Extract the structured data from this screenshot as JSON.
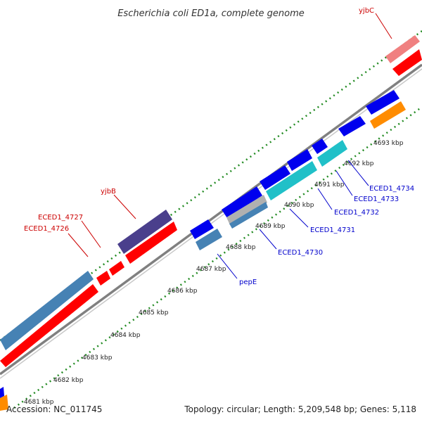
{
  "title": "Escherichia coli ED1a, complete genome",
  "footer": {
    "accession": "Accession: NC_011745",
    "summary": "Topology: circular; Length: 5,209,548 bp; Genes: 5,118"
  },
  "scale": {
    "ticks": [
      "4681 kbp",
      "4682 kbp",
      "4683 kbp",
      "4684 kbp",
      "4685 kbp",
      "4686 kbp",
      "4687 kbp",
      "4688 kbp",
      "4689 kbp",
      "4690 kbp",
      "4691 kbp",
      "4692 kbp",
      "4693 kbp"
    ]
  },
  "gene_labels": {
    "forward": [
      "yjbC",
      "yjbB",
      "ECED1_4727",
      "ECED1_4726"
    ],
    "reverse": [
      "pepE",
      "ECED1_4730",
      "ECED1_4731",
      "ECED1_4732",
      "ECED1_4733",
      "ECED1_4734"
    ]
  },
  "colors": {
    "forward_label": "#cc0000",
    "reverse_label": "#0000cc",
    "red": "#ff0000",
    "pink": "#f08080",
    "navy": "#4a3f8c",
    "steelblue": "#4682b4",
    "blue": "#0000ee",
    "cyan": "#20c0c8",
    "silver": "#b0b0b0",
    "orange": "#ff8c00",
    "backbone": "#808080",
    "tick_green": "#228b22"
  }
}
